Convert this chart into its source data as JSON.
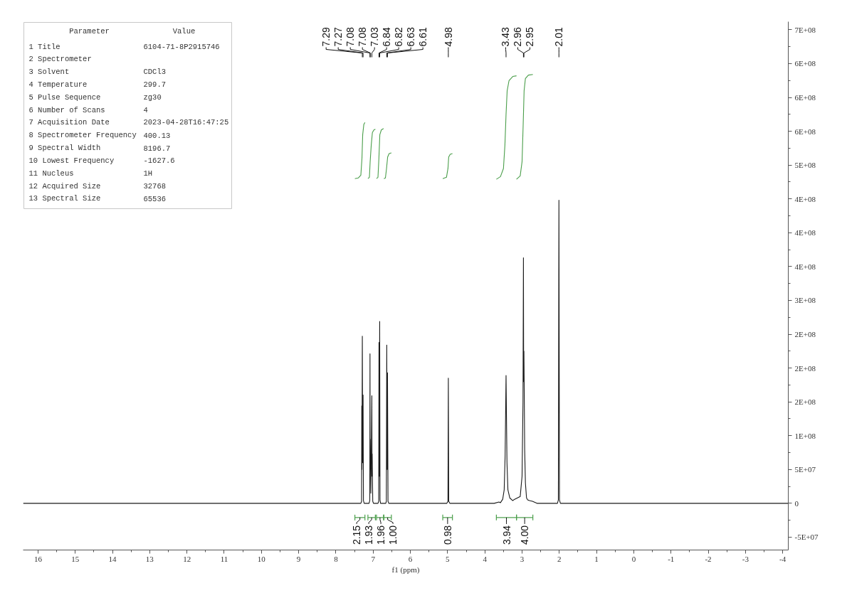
{
  "chart_data": {
    "type": "line",
    "xlabel": "f1 (ppm)",
    "xlim": [
      16.4,
      -4.15
    ],
    "ylim": [
      -69000000,
      712000000
    ],
    "xticks": [
      16,
      {
        "value": 15.5,
        "label": null
      },
      15,
      {
        "value": 14.5,
        "label": null
      },
      14,
      {
        "value": 13.5,
        "label": null
      },
      13,
      {
        "value": 12.5,
        "label": null
      },
      12,
      {
        "value": 11.5,
        "label": null
      },
      11,
      {
        "value": 10.5,
        "label": null
      },
      10,
      {
        "value": 9.5,
        "label": null
      },
      9,
      {
        "value": 8.5,
        "label": null
      },
      8,
      {
        "value": 7.5,
        "label": null
      },
      7,
      {
        "value": 6.5,
        "label": null
      },
      6,
      {
        "value": 5.5,
        "label": null
      },
      5,
      {
        "value": 4.5,
        "label": null
      },
      4,
      {
        "value": 3.5,
        "label": null
      },
      3,
      {
        "value": 2.5,
        "label": null
      },
      2,
      {
        "value": 1.5,
        "label": null
      },
      1,
      {
        "value": 0.5,
        "label": null
      },
      0,
      {
        "value": -0.5,
        "label": null
      },
      -1,
      {
        "value": -1.5,
        "label": null
      },
      -2,
      {
        "value": -2.5,
        "label": null
      },
      -3,
      {
        "value": -3.5,
        "label": null
      },
      -4
    ],
    "yticks": [
      {
        "value": -50000000,
        "label": "-5E+07"
      },
      {
        "value": -25000000,
        "label": null
      },
      0,
      {
        "value": 25000000,
        "label": null
      },
      {
        "value": 50000000,
        "label": "5E+07"
      },
      {
        "value": 75000000,
        "label": null
      },
      {
        "value": 100000000,
        "label": "1E+08"
      },
      {
        "value": 125000000,
        "label": null
      },
      {
        "value": 150000000,
        "label": "2E+08"
      },
      {
        "value": 175000000,
        "label": null
      },
      {
        "value": 200000000,
        "label": "2E+08"
      },
      {
        "value": 225000000,
        "label": null
      },
      {
        "value": 250000000,
        "label": "2E+08"
      },
      {
        "value": 275000000,
        "label": null
      },
      {
        "value": 300000000,
        "label": "3E+08"
      },
      {
        "value": 325000000,
        "label": null
      },
      {
        "value": 350000000,
        "label": "4E+08"
      },
      {
        "value": 375000000,
        "label": null
      },
      {
        "value": 400000000,
        "label": "4E+08"
      },
      {
        "value": 425000000,
        "label": null
      },
      {
        "value": 450000000,
        "label": "4E+08"
      },
      {
        "value": 475000000,
        "label": null
      },
      {
        "value": 500000000,
        "label": "5E+08"
      },
      {
        "value": 525000000,
        "label": null
      },
      {
        "value": 550000000,
        "label": "6E+08"
      },
      {
        "value": 575000000,
        "label": null
      },
      {
        "value": 600000000,
        "label": "6E+08"
      },
      {
        "value": 625000000,
        "label": null
      },
      {
        "value": 650000000,
        "label": "6E+08"
      },
      {
        "value": 675000000,
        "label": null
      },
      {
        "value": 700000000,
        "label": "7E+08"
      }
    ],
    "series": [
      {
        "color": "#1a1a1a",
        "x": [
          16.4,
          7.33,
          7.31,
          7.305,
          7.3,
          7.29,
          7.28,
          7.27,
          7.26,
          7.24,
          7.11,
          7.09,
          7.084,
          7.08,
          7.076,
          7.06,
          7.034,
          7.03,
          7.025,
          7.01,
          6.99,
          6.87,
          6.85,
          6.842,
          6.833,
          6.824,
          6.815,
          6.8,
          6.66,
          6.645,
          6.634,
          6.625,
          6.614,
          6.6,
          6.58,
          5.02,
          4.99,
          4.98,
          4.97,
          4.94,
          3.75,
          3.62,
          3.58,
          3.52,
          3.48,
          3.455,
          3.44,
          3.43,
          3.42,
          3.405,
          3.38,
          3.33,
          3.25,
          3.2,
          3.05,
          3.0,
          2.975,
          2.963,
          2.957,
          2.95,
          2.93,
          2.91,
          2.88,
          2.85,
          2.8,
          2.72,
          2.6,
          2.05,
          2.025,
          2.01,
          1.995,
          1.97,
          -4.15
        ],
        "values": [
          0,
          0,
          3000000,
          144000000,
          50000000,
          247000000,
          60000000,
          160000000,
          4000000,
          0,
          0,
          4000000,
          221000000,
          50000000,
          95000000,
          15000000,
          159000000,
          40000000,
          73000000,
          3000000,
          0,
          0,
          3000000,
          238000000,
          40000000,
          269000000,
          5000000,
          0,
          0,
          3000000,
          234000000,
          50000000,
          193000000,
          3000000,
          0,
          0,
          3000000,
          185000000,
          3000000,
          0,
          0,
          2000000,
          1000000,
          6000000,
          20000000,
          70000000,
          140000000,
          189000000,
          135000000,
          60000000,
          20000000,
          8000000,
          4000000,
          6000000,
          10000000,
          40000000,
          150000000,
          363000000,
          180000000,
          225000000,
          80000000,
          30000000,
          8000000,
          5000000,
          4000000,
          3000000,
          0,
          0,
          5000000,
          448000000,
          5000000,
          0,
          0
        ]
      },
      {
        "color": "#4a9e4a",
        "x": [
          7.49,
          7.4,
          7.33,
          7.3,
          7.28,
          7.25,
          7.22
        ],
        "values": [
          480000000,
          481000000,
          485000000,
          510000000,
          545000000,
          560000000,
          563000000
        ]
      },
      {
        "color": "#4a9e4a",
        "x": [
          7.14,
          7.1,
          7.08,
          7.05,
          7.02,
          6.98,
          6.94
        ],
        "values": [
          480000000,
          482000000,
          505000000,
          530000000,
          548000000,
          552000000,
          553000000
        ]
      },
      {
        "color": "#4a9e4a",
        "x": [
          6.91,
          6.87,
          6.845,
          6.82,
          6.78,
          6.72
        ],
        "values": [
          480000000,
          482000000,
          510000000,
          545000000,
          552000000,
          554000000
        ]
      },
      {
        "color": "#4a9e4a",
        "x": [
          6.71,
          6.67,
          6.64,
          6.61,
          6.57,
          6.51
        ],
        "values": [
          480000000,
          481000000,
          495000000,
          512000000,
          517000000,
          518000000
        ]
      },
      {
        "color": "#4a9e4a",
        "x": [
          5.13,
          5.03,
          4.99,
          4.97,
          4.93,
          4.87
        ],
        "values": [
          480000000,
          482000000,
          495000000,
          512000000,
          516000000,
          517000000
        ]
      },
      {
        "color": "#4a9e4a",
        "x": [
          3.69,
          3.58,
          3.5,
          3.46,
          3.43,
          3.4,
          3.35,
          3.25,
          3.15
        ],
        "values": [
          479000000,
          483000000,
          495000000,
          530000000,
          575000000,
          610000000,
          625000000,
          631000000,
          632000000
        ]
      },
      {
        "color": "#4a9e4a",
        "x": [
          3.15,
          3.05,
          3.0,
          2.97,
          2.945,
          2.91,
          2.83,
          2.71
        ],
        "values": [
          479000000,
          484000000,
          505000000,
          560000000,
          610000000,
          628000000,
          633000000,
          634000000
        ]
      }
    ],
    "annotations": [
      "Parameter\tValue",
      "1 Title\t6104-71-8P2915746",
      "2 Spectrometer",
      "3 Solvent\tCDCl3",
      "4 Temperature\t299.7",
      "5 Pulse Sequence\tzg30",
      "6 Number of Scans\t4",
      "7 Acquisition Date\t2023-04-28T16:47:25",
      "8 Spectrometer Frequency\t400.13",
      "9 Spectral Width\t8196.7",
      "10 Lowest Frequency\t-1627.6",
      "11 Nucleus\t1H",
      "12 Acquired Size\t32768",
      "13 Spectral Size\t65536",
      {
        "text": "7.29",
        "x": 7.29
      },
      {
        "text": "7.27",
        "x": 7.27
      },
      {
        "text": "7.08",
        "x": 7.084
      },
      {
        "text": "7.08",
        "x": 7.076
      },
      {
        "text": "7.03",
        "x": 7.034
      },
      {
        "text": "6.84",
        "x": 6.842
      },
      {
        "text": "6.82",
        "x": 6.824
      },
      {
        "text": "6.63",
        "x": 6.634
      },
      {
        "text": "6.61",
        "x": 6.614
      },
      {
        "text": "4.98",
        "x": 4.98
      },
      {
        "text": "3.43",
        "x": 3.43
      },
      {
        "text": "2.96",
        "x": 2.963
      },
      {
        "text": "2.95",
        "x": 2.95
      },
      {
        "text": "2.01",
        "x": 2.01
      },
      "2.15",
      "1.93",
      "1.96",
      "1.00",
      "0.98",
      "3.94",
      "4.00"
    ]
  }
}
